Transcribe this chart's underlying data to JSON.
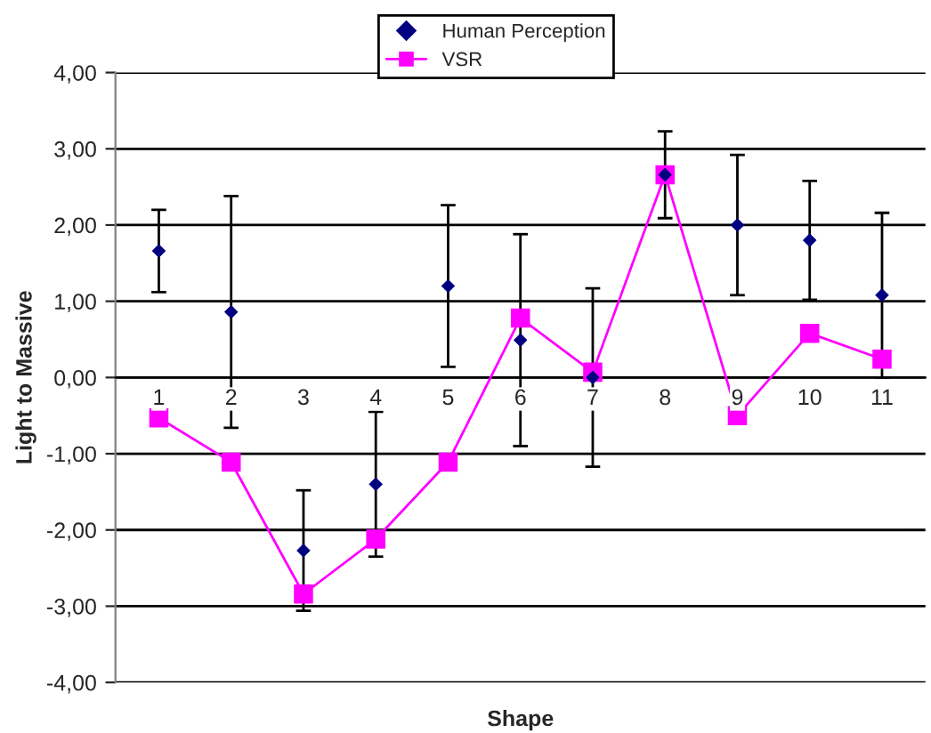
{
  "chart_data": {
    "type": "line",
    "xlabel": "Shape",
    "ylabel": "Light to Massive",
    "categories": [
      "1",
      "2",
      "3",
      "4",
      "5",
      "6",
      "7",
      "8",
      "9",
      "10",
      "11"
    ],
    "series": [
      {
        "name": "Human Perception",
        "type": "scatter",
        "marker": "diamond",
        "color": "#000080",
        "values": [
          1.66,
          0.86,
          -2.27,
          -1.4,
          1.2,
          0.49,
          0.0,
          2.66,
          2.0,
          1.8,
          1.08
        ],
        "errors": [
          0.54,
          1.52,
          0.79,
          0.95,
          1.06,
          1.39,
          1.17,
          0.57,
          0.92,
          0.78,
          1.08
        ]
      },
      {
        "name": "VSR",
        "marker": "square",
        "line_style": "solid",
        "color": "#ff00ff",
        "values": [
          -0.53,
          -1.11,
          -2.84,
          -2.12,
          -1.11,
          0.78,
          0.07,
          2.66,
          -0.5,
          0.58,
          0.24
        ]
      }
    ],
    "ylim": [
      -4,
      4
    ],
    "yticks": [
      {
        "value": -4,
        "label": "-4,00"
      },
      {
        "value": -3,
        "label": "-3,00"
      },
      {
        "value": -2,
        "label": "-2,00"
      },
      {
        "value": -1,
        "label": "-1,00"
      },
      {
        "value": 0,
        "label": "0,00"
      },
      {
        "value": 1,
        "label": "1,00"
      },
      {
        "value": 2,
        "label": "2,00"
      },
      {
        "value": 3,
        "label": "3,00"
      },
      {
        "value": 4,
        "label": "4,00"
      }
    ],
    "grid": "y",
    "legend": "top"
  }
}
